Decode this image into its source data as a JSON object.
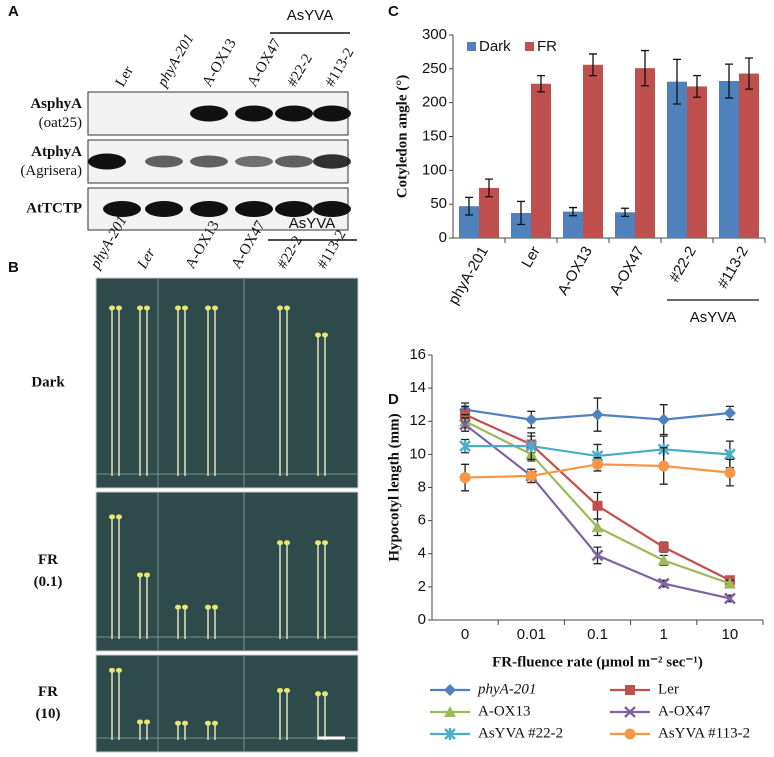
{
  "panel_labels": [
    "A",
    "B",
    "C",
    "D"
  ],
  "blot": {
    "lanes": [
      "Ler",
      "phyA-201",
      "A-OX13",
      "A-OX47",
      "#22-2",
      "#113-2"
    ],
    "group": "AsYVA",
    "rows": [
      {
        "label": "AsphyA",
        "sub": "(oat25)"
      },
      {
        "label": "AtphyA",
        "sub": "(Agrisera)"
      },
      {
        "label": "AtTCTP"
      }
    ]
  },
  "photo": {
    "columns": [
      "phyA-201",
      "Ler",
      "A-OX13",
      "A-OX47",
      "#22-2",
      "#113-2"
    ],
    "group": "AsYVA",
    "rows": [
      {
        "label": "Dark"
      },
      {
        "label": "FR",
        "sub": "(0.1)"
      },
      {
        "label": "FR",
        "sub": "(10)"
      }
    ]
  },
  "chart_data": [
    {
      "type": "bar",
      "y_label": "Cotyledon angle (°)",
      "categories": [
        "phyA-201",
        "Ler",
        "A-OX13",
        "A-OX47",
        "#22-2",
        "#113-2"
      ],
      "group_label": "AsYVA",
      "ylim": [
        0,
        300
      ],
      "yticks": [
        0,
        50,
        100,
        150,
        200,
        250,
        300
      ],
      "legend": "top-left",
      "series": [
        {
          "name": "Dark",
          "color": "#4f81bd",
          "values": [
            47,
            37,
            39,
            38,
            231,
            232
          ],
          "errors": [
            13,
            17,
            6,
            6,
            33,
            25
          ]
        },
        {
          "name": "FR",
          "color": "#c0504d",
          "values": [
            74,
            228,
            256,
            251,
            224,
            243
          ],
          "errors": [
            13,
            12,
            16,
            26,
            16,
            23
          ]
        }
      ]
    },
    {
      "type": "line",
      "y_label": "Hypocotyl length (mm)",
      "x_label": "FR-fluence rate (μmol m⁻² sec⁻¹)",
      "categories": [
        "0",
        "0.01",
        "0.1",
        "1",
        "10"
      ],
      "ylim": [
        0,
        16
      ],
      "yticks": [
        0,
        2,
        4,
        6,
        8,
        10,
        12,
        14,
        16
      ],
      "legend": "bottom",
      "series": [
        {
          "name": "phyA-201",
          "color": "#4f81bd",
          "marker": "diamond",
          "values": [
            12.7,
            12.1,
            12.4,
            12.1,
            12.5
          ],
          "errors": [
            0.4,
            0.5,
            1.0,
            0.9,
            0.4
          ]
        },
        {
          "name": "Ler",
          "color": "#c0504d",
          "marker": "square",
          "values": [
            12.4,
            10.6,
            6.9,
            4.4,
            2.4
          ],
          "errors": [
            0.5,
            0.5,
            0.8,
            0.3,
            0.2
          ]
        },
        {
          "name": "A-OX13",
          "color": "#9bbb59",
          "marker": "triangle",
          "values": [
            12.0,
            10.0,
            5.6,
            3.6,
            2.2
          ],
          "errors": [
            0.4,
            0.4,
            0.5,
            0.3,
            0.2
          ]
        },
        {
          "name": "A-OX47",
          "color": "#8064a2",
          "marker": "x",
          "values": [
            11.8,
            8.7,
            3.9,
            2.2,
            1.3
          ],
          "errors": [
            0.4,
            0.4,
            0.5,
            0.2,
            0.2
          ]
        },
        {
          "name": "AsYVA #22-2",
          "color": "#4bacc6",
          "marker": "star",
          "values": [
            10.5,
            10.5,
            9.9,
            10.3,
            10.0
          ],
          "errors": [
            0.4,
            0.8,
            0.7,
            0.8,
            0.8
          ]
        },
        {
          "name": "AsYVA #113-2",
          "color": "#f79646",
          "marker": "circle",
          "values": [
            8.6,
            8.7,
            9.4,
            9.3,
            8.9
          ],
          "errors": [
            0.8,
            0.4,
            0.4,
            1.1,
            0.8
          ]
        }
      ]
    }
  ]
}
